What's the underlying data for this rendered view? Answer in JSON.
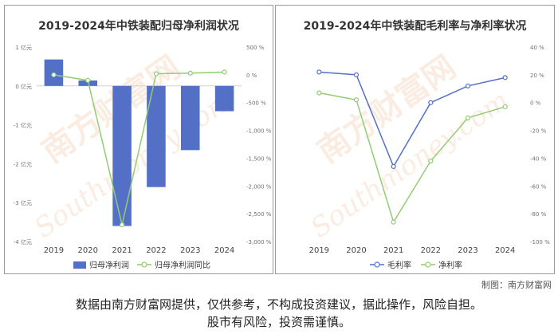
{
  "charts": [
    {
      "title": "2019-2024年中铁装配归母净利润状况",
      "legend": [
        "归母净利润",
        "归母净利润同比"
      ]
    },
    {
      "title": "2019-2024年中铁装配毛利率与净利率状况",
      "legend": [
        "毛利率",
        "净利率"
      ]
    }
  ],
  "watermark": {
    "brand": "南方财富网",
    "latin": "Southmoney.com"
  },
  "credit": "制图：南方财富网",
  "disclaimer": {
    "line1": "数据由南方财富网提供，仅供参考，不构成投资建议，据此操作，风险自担。",
    "line2": "股市有风险，投资需谨慎。"
  },
  "colors": {
    "bar": "#5470c6",
    "line_green": "#91cc75",
    "line_blue": "#5470c6",
    "axis_text": "#6e7079",
    "grid": "#e0e6f1"
  },
  "chart_data": [
    {
      "type": "bar",
      "categories": [
        "2019",
        "2020",
        "2021",
        "2022",
        "2023",
        "2024"
      ],
      "series": [
        {
          "name": "归母净利润",
          "type": "bar",
          "axis": "left",
          "values": [
            0.68,
            0.14,
            -3.6,
            -2.6,
            -1.65,
            -0.65
          ]
        },
        {
          "name": "归母净利润同比",
          "type": "line",
          "axis": "right",
          "values": [
            0,
            -100,
            -2700,
            20,
            30,
            50
          ]
        }
      ],
      "y_left": {
        "min": -4,
        "max": 1,
        "ticks": [
          1,
          0,
          -1,
          -2,
          -3,
          -4
        ],
        "tick_labels": [
          "1 亿元",
          "0 亿元",
          "-1 亿元",
          "-2 亿元",
          "-3 亿元",
          "-4 亿元"
        ]
      },
      "y_right": {
        "min": -3000,
        "max": 500,
        "ticks": [
          500,
          0,
          -500,
          -1000,
          -1500,
          -2000,
          -2500,
          -3000
        ],
        "tick_labels": [
          "500 %",
          "0 %",
          "-500 %",
          "-1,000 %",
          "-1,500 %",
          "-2,000 %",
          "-2,500 %",
          "-3,000 %"
        ]
      },
      "grid": false,
      "legend_position": "bottom"
    },
    {
      "type": "line",
      "categories": [
        "2019",
        "2020",
        "2021",
        "2022",
        "2023",
        "2024"
      ],
      "series": [
        {
          "name": "毛利率",
          "values": [
            22,
            20,
            -46,
            0,
            12,
            18
          ]
        },
        {
          "name": "净利率",
          "values": [
            7,
            2,
            -86,
            -42,
            -11,
            -3
          ]
        }
      ],
      "y_right": {
        "min": -100,
        "max": 40,
        "ticks": [
          40,
          20,
          0,
          -20,
          -40,
          -60,
          -80,
          -100
        ],
        "tick_labels": [
          "40 %",
          "20 %",
          "0 %",
          "-20 %",
          "-40 %",
          "-60 %",
          "-80 %",
          "-100 %"
        ]
      },
      "grid": false,
      "legend_position": "bottom"
    }
  ]
}
